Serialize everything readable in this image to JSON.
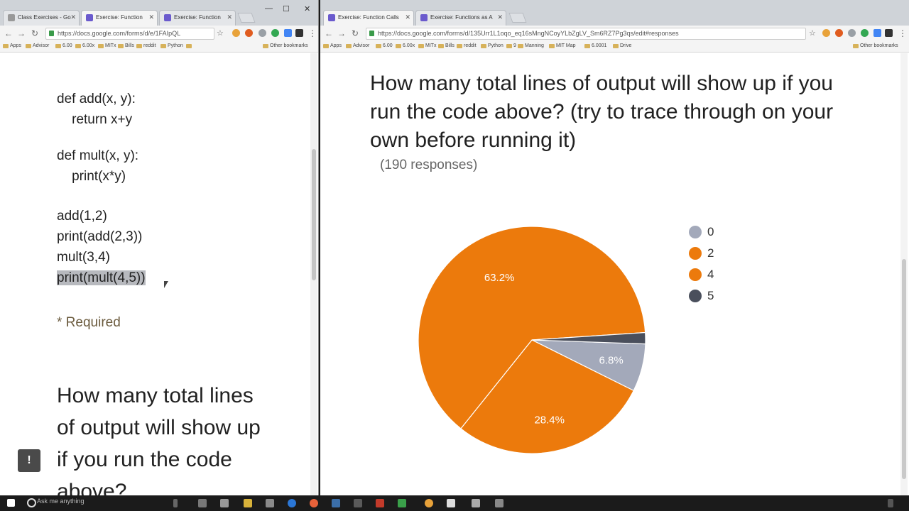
{
  "left_browser": {
    "tabs": [
      {
        "label": "Class Exercises - Go"
      },
      {
        "label": "Exercise: Function"
      },
      {
        "label": "Exercise: Function"
      }
    ],
    "url": "https://docs.google.com/forms/d/e/1FAIpQL",
    "bookmarks": [
      "Apps",
      "Advisor",
      "6.00",
      "6.00x",
      "MITx",
      "Bills",
      "reddit",
      "Python",
      "»",
      "Other bookmarks"
    ],
    "code_lines": [
      "def add(x, y):",
      "    return x+y",
      "def mult(x, y):",
      "    print(x*y)",
      "add(1,2)",
      "print(add(2,3))",
      "mult(3,4)",
      "print(mult(4,5))"
    ],
    "required_label": "* Required",
    "question_text": "How many total lines of output will show up if you run the code above?"
  },
  "right_browser": {
    "tabs": [
      {
        "label": "Exercise: Function Calls"
      },
      {
        "label": "Exercise: Functions as A"
      }
    ],
    "url": "https://docs.google.com/forms/d/135Urr1L1oqo_eq16sMngNCoyYLbZgLV_Sm6RZ7Pg3qs/edit#responses",
    "bookmarks": [
      "Apps",
      "Advisor",
      "6.00",
      "6.00x",
      "MITx",
      "Bills",
      "reddit",
      "Python",
      "9",
      "Manning",
      "MIT Map",
      "6.0001",
      "Drive",
      "Other bookmarks"
    ],
    "question_text": "How many total lines of output will show up if you run the code above? (try to trace through on your own before running it)",
    "responses_label": "(190 responses)"
  },
  "chart_data": {
    "type": "pie",
    "total_responses": 190,
    "slices": [
      {
        "label": "0",
        "value": 6.8,
        "color": "#a3a9ba",
        "data_label": "6.8%"
      },
      {
        "label": "2",
        "value": 28.4,
        "color": "#ec7a0c",
        "data_label": "28.4%"
      },
      {
        "label": "4",
        "value": 63.2,
        "color": "#ec7a0c",
        "data_label": "63.2%"
      },
      {
        "label": "5",
        "value": 1.6,
        "color": "#4a4f5c",
        "data_label": ""
      }
    ],
    "legend": [
      "0",
      "2",
      "4",
      "5"
    ],
    "legend_position": "right"
  },
  "taskbar": {
    "search_placeholder": "Ask me anything"
  }
}
